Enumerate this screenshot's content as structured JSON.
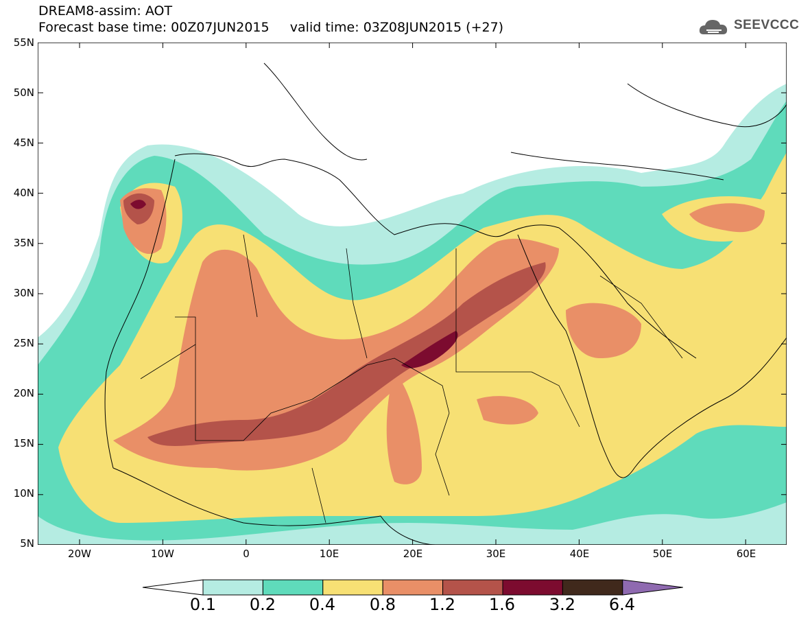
{
  "title": {
    "line1": "DREAM8-assim: AOT",
    "line2": "Forecast base time: 00Z07JUN2015     valid time: 03Z08JUN2015 (+27)"
  },
  "logo": {
    "text": "SEEVCCC",
    "icon": "cloud-logo-icon"
  },
  "map": {
    "lat_labels": [
      "55N",
      "50N",
      "45N",
      "40N",
      "35N",
      "30N",
      "25N",
      "20N",
      "15N",
      "10N",
      "5N"
    ],
    "lon_labels": [
      "20W",
      "10W",
      "0",
      "10E",
      "20E",
      "30E",
      "40E",
      "50E",
      "60E"
    ]
  },
  "colorbar": {
    "labels": [
      "0.1",
      "0.2",
      "0.4",
      "0.8",
      "1.2",
      "1.6",
      "3.2",
      "6.4"
    ],
    "colors": [
      "#ffffff",
      "#b5ece2",
      "#5fdbbb",
      "#f7e074",
      "#e98f67",
      "#b4534a",
      "#7c0b2f",
      "#40291c",
      "#8f6ab0"
    ]
  }
}
